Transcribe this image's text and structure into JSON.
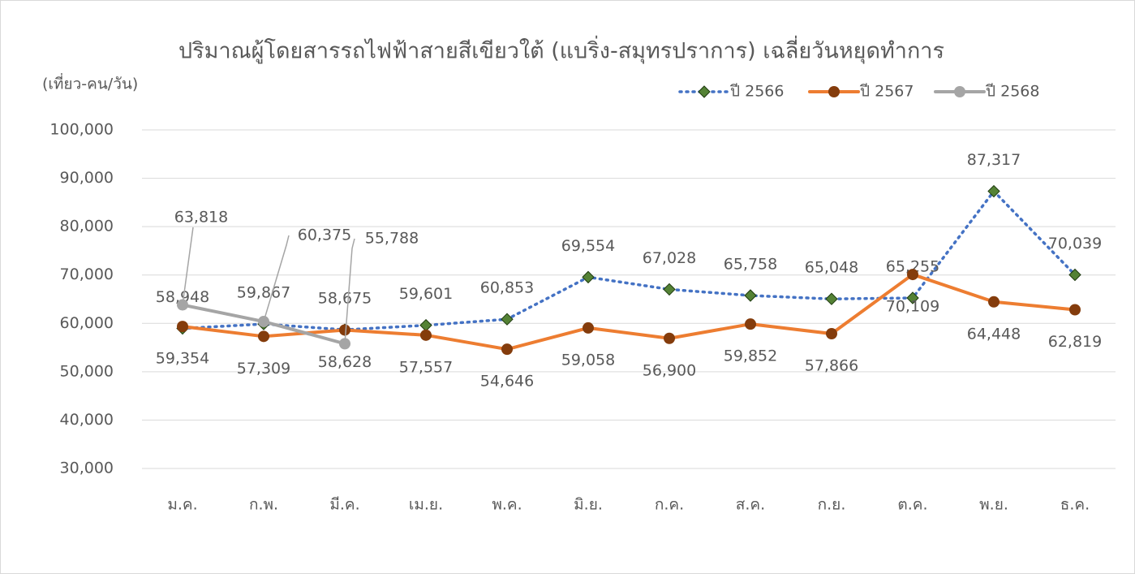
{
  "chart_data": {
    "type": "line",
    "title": "ปริมาณผู้โดยสารรถไฟฟ้าสายสีเขียวใต้ (แบริ่ง-สมุทรปราการ) เฉลี่ยวันหยุดทำการ",
    "y_label": "(เที่ยว-คน/วัน)",
    "categories": [
      "ม.ค.",
      "ก.พ.",
      "มี.ค.",
      "เม.ย.",
      "พ.ค.",
      "มิ.ย.",
      "ก.ค.",
      "ส.ค.",
      "ก.ย.",
      "ต.ค.",
      "พ.ย.",
      "ธ.ค."
    ],
    "series": [
      {
        "name": "ปี 2566",
        "color": "#4472c4",
        "marker_color": "#548235",
        "label_color": "#548235",
        "dash": true,
        "marker": "diamond",
        "values": [
          58948,
          59867,
          58675,
          59601,
          60853,
          69554,
          67028,
          65758,
          65048,
          65255,
          87317,
          70039
        ],
        "value_labels": [
          "58,948",
          "59,867",
          "58,675",
          "59,601",
          "60,853",
          "69,554",
          "67,028",
          "65,758",
          "65,048",
          "65,255",
          "87,317",
          "70,039"
        ]
      },
      {
        "name": "ปี 2567",
        "color": "#ed7d31",
        "marker_color": "#843c0c",
        "label_color": "#843c0c",
        "dash": false,
        "marker": "circle",
        "values": [
          59354,
          57309,
          58628,
          57557,
          54646,
          59058,
          56900,
          59852,
          57866,
          70109,
          64448,
          62819
        ],
        "value_labels": [
          "59,354",
          "57,309",
          "58,628",
          "57,557",
          "54,646",
          "59,058",
          "56,900",
          "59,852",
          "57,866",
          "70,109",
          "64,448",
          "62,819"
        ]
      },
      {
        "name": "ปี 2568",
        "color": "#a5a5a5",
        "marker_color": "#a5a5a5",
        "label_color": "#595959",
        "dash": false,
        "marker": "circle",
        "values": [
          63818,
          60375,
          55788,
          null,
          null,
          null,
          null,
          null,
          null,
          null,
          null,
          null
        ],
        "value_labels": [
          "63,818",
          "60,375",
          "55,788",
          null,
          null,
          null,
          null,
          null,
          null,
          null,
          null,
          null
        ]
      }
    ],
    "ylim": [
      30000,
      100000
    ],
    "yticks": [
      {
        "value": 30000,
        "label": "30,000"
      },
      {
        "value": 40000,
        "label": "40,000"
      },
      {
        "value": 50000,
        "label": "50,000"
      },
      {
        "value": 60000,
        "label": "60,000"
      },
      {
        "value": 70000,
        "label": "70,000"
      },
      {
        "value": 80000,
        "label": "80,000"
      },
      {
        "value": 90000,
        "label": "90,000"
      },
      {
        "value": 100000,
        "label": "100,000"
      }
    ],
    "grid": true,
    "legend": "top-right"
  }
}
